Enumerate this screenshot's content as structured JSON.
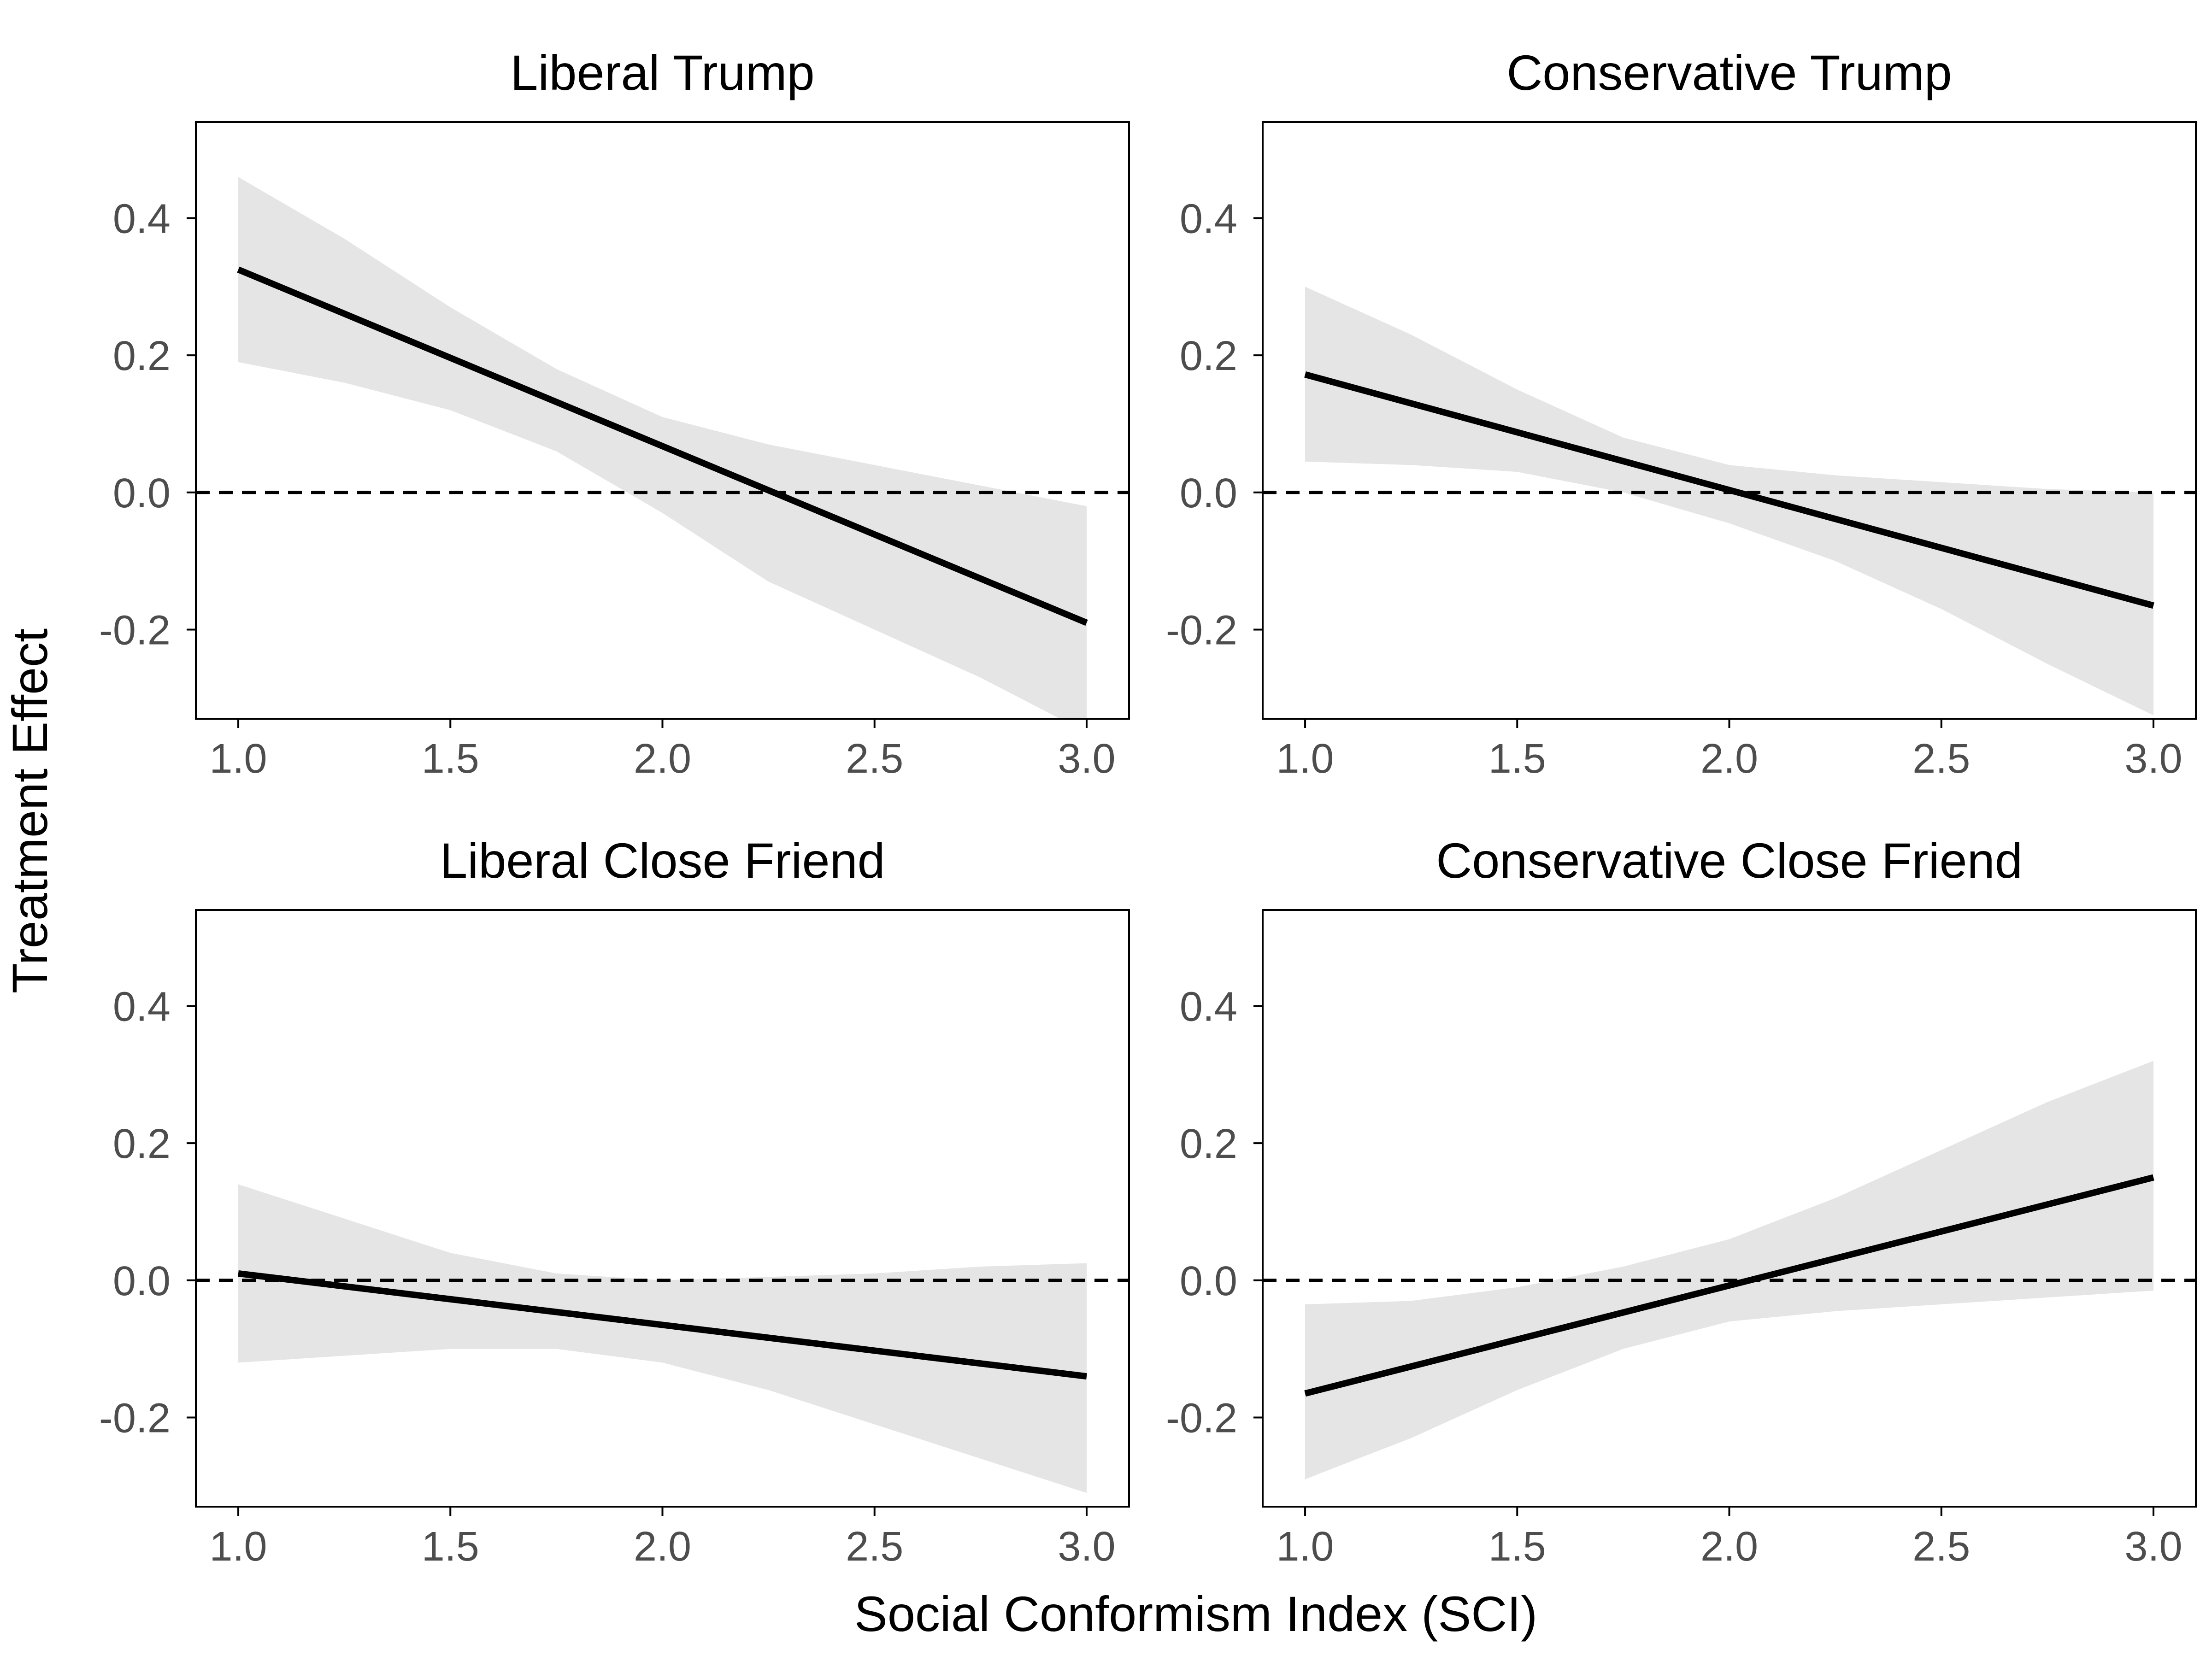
{
  "figure": {
    "ylabel": "Treatment Effect",
    "xlabel": "Social Conformism Index (SCI)"
  },
  "colors": {
    "band": "#e5e5e5",
    "line": "#000000",
    "reference": "#000000",
    "frame": "#000000",
    "tick_label": "#4d4d4d"
  },
  "chart_data": [
    {
      "type": "line",
      "title": "Liberal Trump",
      "xlim": [
        0.9,
        3.1
      ],
      "ylim": [
        -0.33,
        0.54
      ],
      "xticks": [
        "1.0",
        "1.5",
        "2.0",
        "2.5",
        "3.0"
      ],
      "yticks": [
        "0.4",
        "0.2",
        "0.0",
        "-0.2"
      ],
      "reference_line": 0,
      "x": [
        1.0,
        3.0
      ],
      "y": [
        0.325,
        -0.19
      ],
      "band": {
        "x": [
          1.0,
          1.25,
          1.5,
          1.75,
          2.0,
          2.25,
          2.5,
          2.75,
          3.0
        ],
        "lower": [
          0.19,
          0.16,
          0.12,
          0.06,
          -0.03,
          -0.13,
          -0.2,
          -0.27,
          -0.35
        ],
        "upper": [
          0.46,
          0.37,
          0.27,
          0.18,
          0.11,
          0.07,
          0.04,
          0.01,
          -0.02
        ]
      }
    },
    {
      "type": "line",
      "title": "Conservative Trump",
      "xlim": [
        0.9,
        3.1
      ],
      "ylim": [
        -0.33,
        0.54
      ],
      "xticks": [
        "1.0",
        "1.5",
        "2.0",
        "2.5",
        "3.0"
      ],
      "yticks": [
        "0.4",
        "0.2",
        "0.0",
        "-0.2"
      ],
      "reference_line": 0,
      "x": [
        1.0,
        3.0
      ],
      "y": [
        0.172,
        -0.165
      ],
      "band": {
        "x": [
          1.0,
          1.25,
          1.5,
          1.75,
          2.0,
          2.25,
          2.5,
          2.75,
          3.0
        ],
        "lower": [
          0.045,
          0.04,
          0.03,
          0.0,
          -0.045,
          -0.1,
          -0.17,
          -0.25,
          -0.325
        ],
        "upper": [
          0.3,
          0.23,
          0.15,
          0.08,
          0.04,
          0.025,
          0.015,
          0.005,
          0.0
        ]
      }
    },
    {
      "type": "line",
      "title": "Liberal Close Friend",
      "xlim": [
        0.9,
        3.1
      ],
      "ylim": [
        -0.33,
        0.54
      ],
      "xticks": [
        "1.0",
        "1.5",
        "2.0",
        "2.5",
        "3.0"
      ],
      "yticks": [
        "0.4",
        "0.2",
        "0.0",
        "-0.2"
      ],
      "reference_line": 0,
      "x": [
        1.0,
        3.0
      ],
      "y": [
        0.01,
        -0.14
      ],
      "band": {
        "x": [
          1.0,
          1.25,
          1.5,
          1.75,
          2.0,
          2.25,
          2.5,
          2.75,
          3.0
        ],
        "lower": [
          -0.12,
          -0.11,
          -0.1,
          -0.1,
          -0.12,
          -0.16,
          -0.21,
          -0.26,
          -0.31
        ],
        "upper": [
          0.14,
          0.09,
          0.04,
          0.01,
          0.0,
          0.005,
          0.01,
          0.02,
          0.025
        ]
      }
    },
    {
      "type": "line",
      "title": "Conservative Close Friend",
      "xlim": [
        0.9,
        3.1
      ],
      "ylim": [
        -0.33,
        0.54
      ],
      "xticks": [
        "1.0",
        "1.5",
        "2.0",
        "2.5",
        "3.0"
      ],
      "yticks": [
        "0.4",
        "0.2",
        "0.0",
        "-0.2"
      ],
      "reference_line": 0,
      "x": [
        1.0,
        3.0
      ],
      "y": [
        -0.165,
        0.15
      ],
      "band": {
        "x": [
          1.0,
          1.25,
          1.5,
          1.75,
          2.0,
          2.25,
          2.5,
          2.75,
          3.0
        ],
        "lower": [
          -0.29,
          -0.23,
          -0.16,
          -0.1,
          -0.06,
          -0.045,
          -0.035,
          -0.025,
          -0.015
        ],
        "upper": [
          -0.035,
          -0.03,
          -0.01,
          0.02,
          0.06,
          0.12,
          0.19,
          0.26,
          0.32
        ]
      }
    }
  ]
}
